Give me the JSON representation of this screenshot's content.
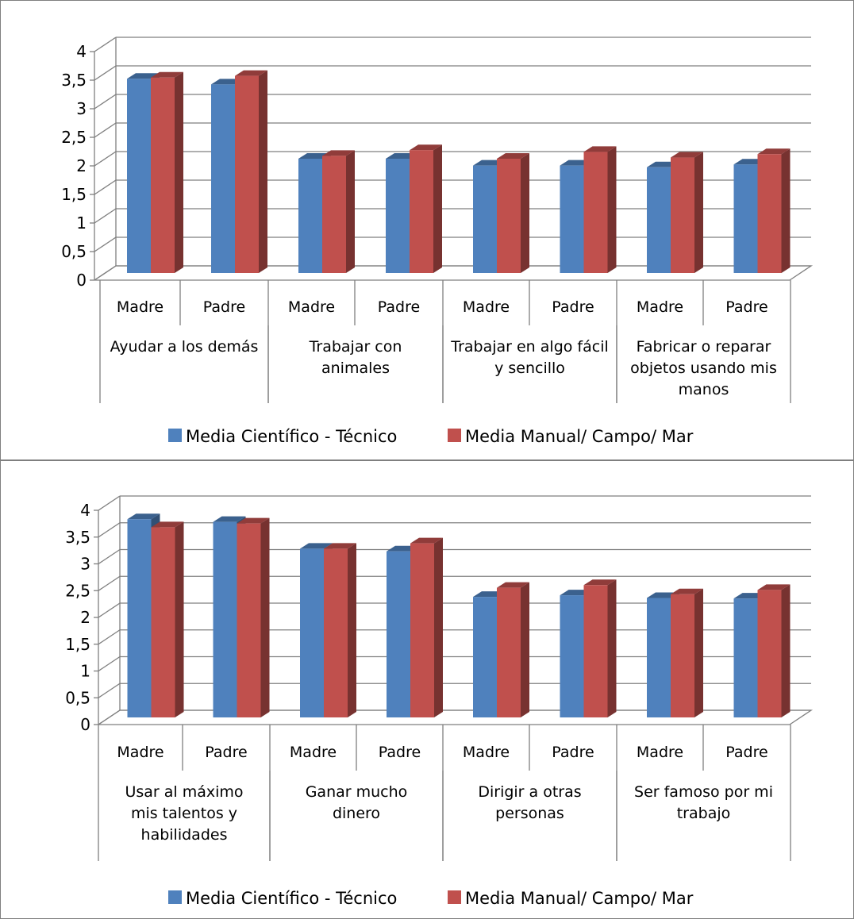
{
  "chart_data": [
    {
      "type": "bar",
      "title": "",
      "xlabel": "",
      "ylabel": "",
      "ylim": [
        0,
        4
      ],
      "yticks": [
        "0",
        "0,5",
        "1",
        "1,5",
        "2",
        "2,5",
        "3",
        "3,5",
        "4"
      ],
      "grid": true,
      "legend": "bottom",
      "style": "3d-clustered-column",
      "groups": [
        {
          "label": "Ayudar a los demás",
          "lines": [
            "Ayudar a los demás"
          ]
        },
        {
          "label": "Trabajar con animales",
          "lines": [
            "Trabajar con",
            "animales"
          ]
        },
        {
          "label": "Trabajar en algo fácil y sencillo",
          "lines": [
            "Trabajar en algo fácil",
            "y sencillo"
          ]
        },
        {
          "label": "Fabricar o reparar objetos usando mis manos",
          "lines": [
            "Fabricar o reparar",
            "objetos usando mis",
            "manos"
          ]
        }
      ],
      "categories": [
        "Madre",
        "Padre",
        "Madre",
        "Padre",
        "Madre",
        "Padre",
        "Madre",
        "Padre"
      ],
      "series": [
        {
          "name": "Media Científico - Técnico",
          "color": "#4F81BD",
          "values": [
            3.4,
            3.3,
            2.0,
            2.0,
            1.88,
            1.88,
            1.85,
            1.9
          ]
        },
        {
          "name": "Media Manual/ Campo/ Mar",
          "color": "#C0504D",
          "values": [
            3.42,
            3.45,
            2.05,
            2.15,
            2.0,
            2.12,
            2.02,
            2.08
          ]
        }
      ]
    },
    {
      "type": "bar",
      "title": "",
      "xlabel": "",
      "ylabel": "",
      "ylim": [
        0,
        4
      ],
      "yticks": [
        "0",
        "0,5",
        "1",
        "1,5",
        "2",
        "2,5",
        "3",
        "3,5",
        "4"
      ],
      "grid": true,
      "legend": "bottom",
      "style": "3d-clustered-column",
      "groups": [
        {
          "label": "Usar al máximo mis talentos y habilidades",
          "lines": [
            "Usar al máximo",
            "mis talentos y",
            "habilidades"
          ]
        },
        {
          "label": "Ganar mucho dinero",
          "lines": [
            "Ganar mucho",
            "dinero"
          ]
        },
        {
          "label": "Dirigir a otras personas",
          "lines": [
            "Dirigir a otras",
            "personas"
          ]
        },
        {
          "label": "Ser famoso por mi trabajo",
          "lines": [
            "Ser famoso por mi",
            "trabajo"
          ]
        }
      ],
      "categories": [
        "Madre",
        "Padre",
        "Madre",
        "Padre",
        "Madre",
        "Padre",
        "Madre",
        "Padre"
      ],
      "series": [
        {
          "name": "Media Científico - Técnico",
          "color": "#4F81BD",
          "values": [
            3.7,
            3.65,
            3.15,
            3.1,
            2.25,
            2.28,
            2.23,
            2.22
          ]
        },
        {
          "name": "Media Manual/ Campo/ Mar",
          "color": "#C0504D",
          "values": [
            3.55,
            3.62,
            3.15,
            3.25,
            2.42,
            2.47,
            2.3,
            2.38
          ]
        }
      ]
    }
  ]
}
